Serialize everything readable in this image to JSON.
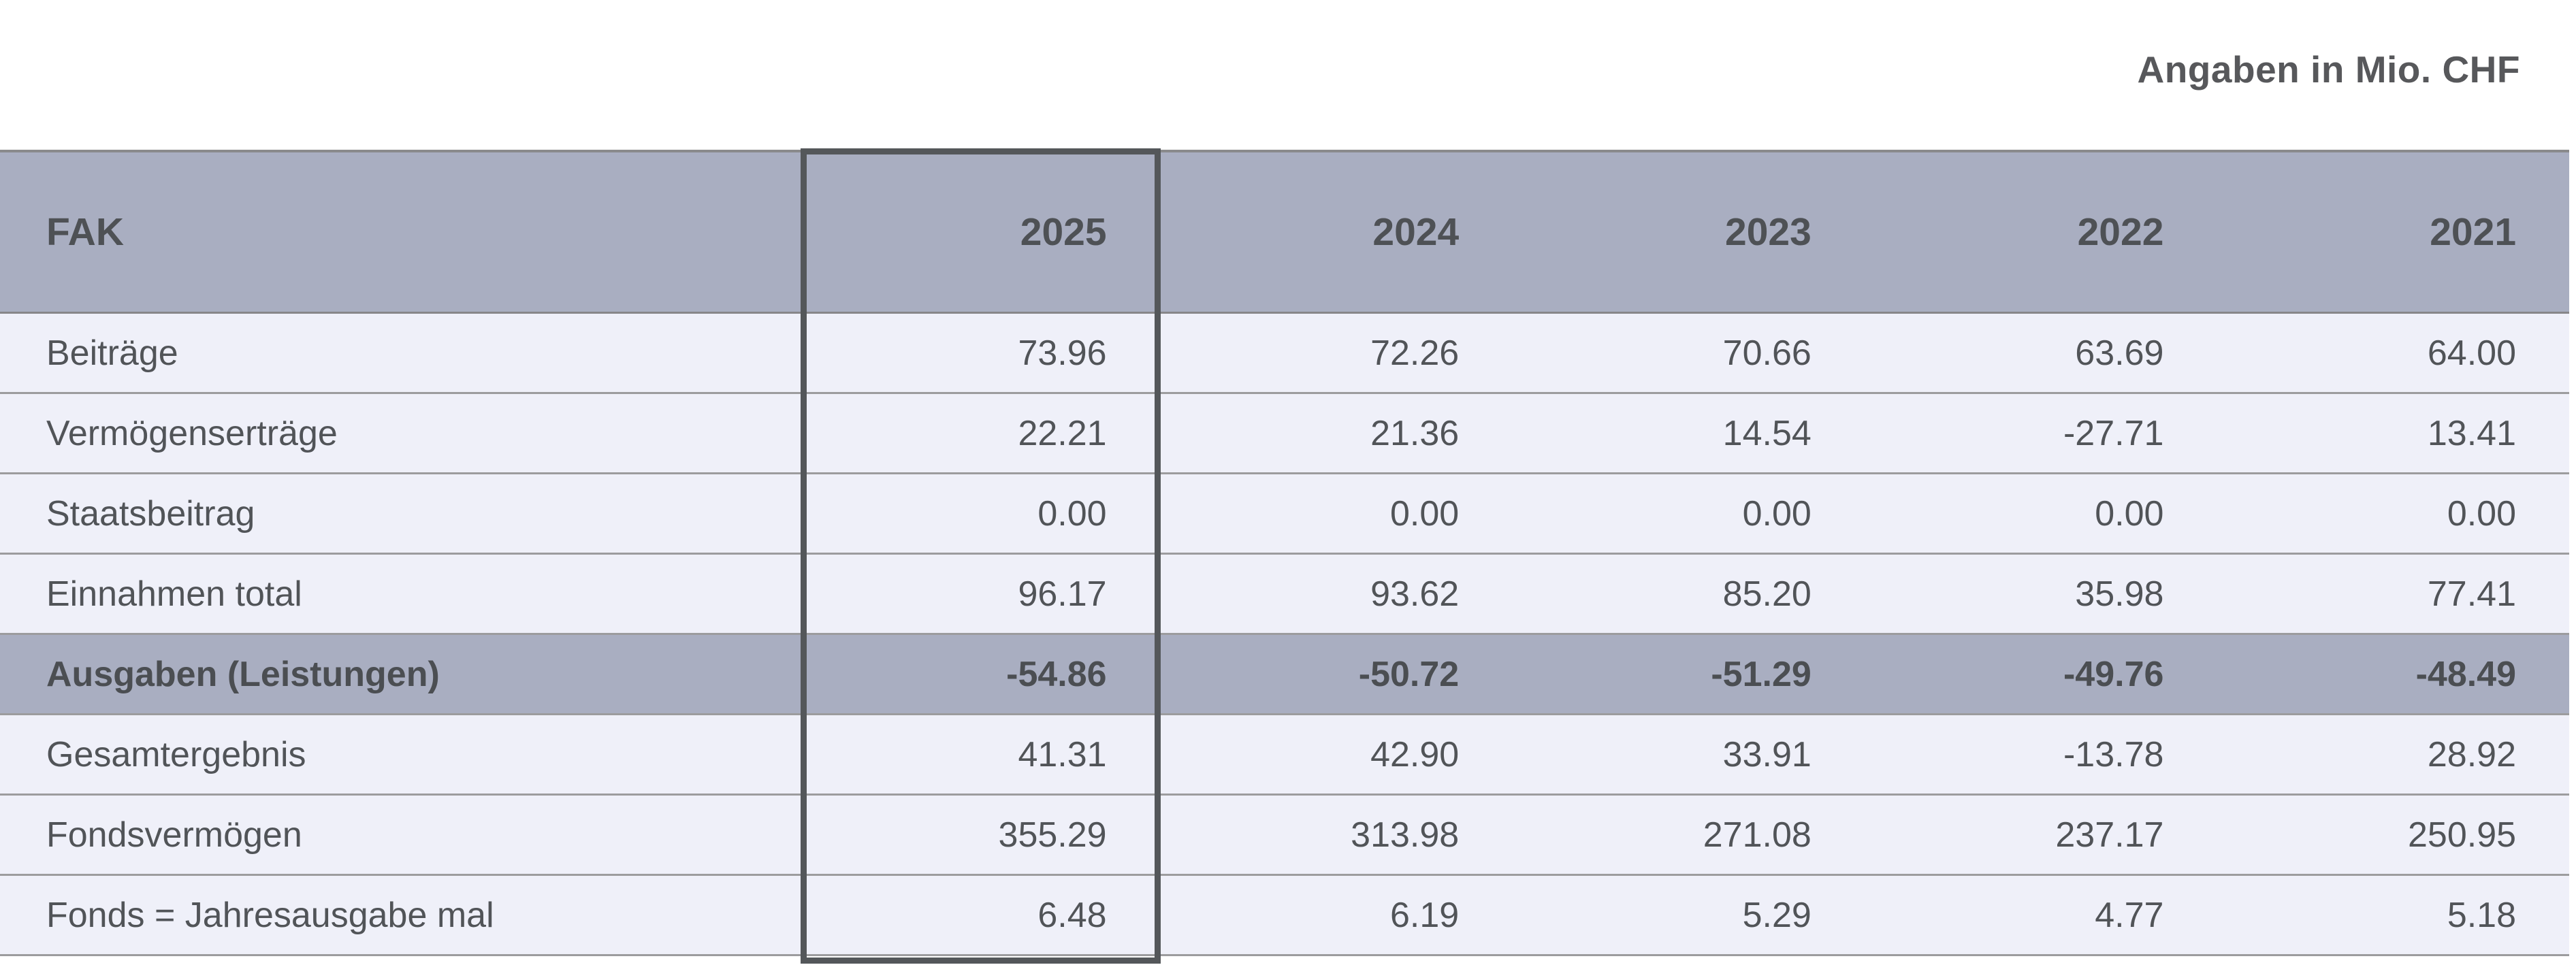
{
  "note": "Angaben in Mio. CHF",
  "table": {
    "header": {
      "label": "FAK",
      "years": [
        "2025",
        "2024",
        "2023",
        "2022",
        "2021"
      ]
    },
    "highlighted_year": "2025",
    "rows": [
      {
        "label": "Beiträge",
        "highlight": false,
        "values": [
          "73.96",
          "72.26",
          "70.66",
          "63.69",
          "64.00"
        ]
      },
      {
        "label": "Vermögenserträge",
        "highlight": false,
        "values": [
          "22.21",
          "21.36",
          "14.54",
          "-27.71",
          "13.41"
        ]
      },
      {
        "label": "Staatsbeitrag",
        "highlight": false,
        "values": [
          "0.00",
          "0.00",
          "0.00",
          "0.00",
          "0.00"
        ]
      },
      {
        "label": "Einnahmen total",
        "highlight": false,
        "values": [
          "96.17",
          "93.62",
          "85.20",
          "35.98",
          "77.41"
        ]
      },
      {
        "label": "Ausgaben (Leistungen)",
        "highlight": true,
        "values": [
          "-54.86",
          "-50.72",
          "-51.29",
          "-49.76",
          "-48.49"
        ]
      },
      {
        "label": "Gesamtergebnis",
        "highlight": false,
        "values": [
          "41.31",
          "42.90",
          "33.91",
          "-13.78",
          "28.92"
        ]
      },
      {
        "label": "Fondsvermögen",
        "highlight": false,
        "values": [
          "355.29",
          "313.98",
          "271.08",
          "237.17",
          "250.95"
        ]
      },
      {
        "label": "Fonds = Jahresausgabe mal",
        "highlight": false,
        "values": [
          "6.48",
          "6.19",
          "5.29",
          "4.77",
          "5.18"
        ]
      }
    ]
  },
  "colors": {
    "header_bg": "#a9aec1",
    "row_bg": "#eff0f9",
    "highlight_bg": "#a9aec1",
    "text": "#515458",
    "separator": "#9c9c9e",
    "column_box_border": "#54575a"
  }
}
